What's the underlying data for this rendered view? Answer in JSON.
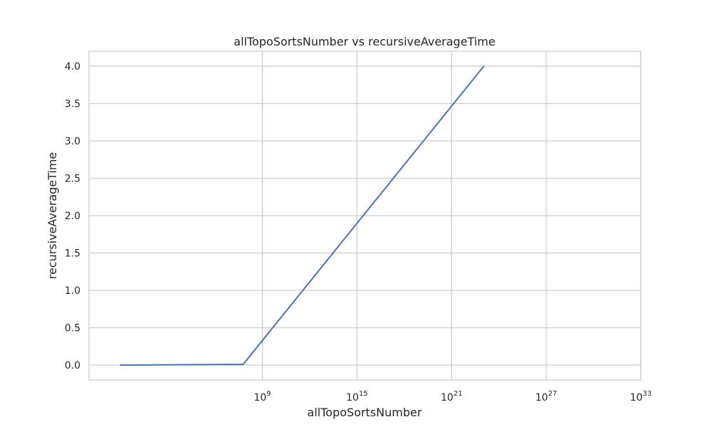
{
  "chart_data": {
    "type": "line",
    "title": "allTopoSortsNumber vs recursiveAverageTime",
    "xlabel": "allTopoSortsNumber",
    "ylabel": "recursiveAverageTime",
    "x_scale": "log",
    "xlim": [
      0.01,
      1e+33
    ],
    "ylim": [
      -0.2,
      4.2
    ],
    "grid": true,
    "x_ticks": [
      {
        "value": 1000000000.0,
        "base": "10",
        "exp": "9"
      },
      {
        "value": 1000000000000000.0,
        "base": "10",
        "exp": "15"
      },
      {
        "value": 1e+21,
        "base": "10",
        "exp": "21"
      },
      {
        "value": 1e+27,
        "base": "10",
        "exp": "27"
      },
      {
        "value": 1e+33,
        "base": "10",
        "exp": "33"
      }
    ],
    "y_ticks": [
      "0.0",
      "0.5",
      "1.0",
      "1.5",
      "2.0",
      "2.5",
      "3.0",
      "3.5",
      "4.0"
    ],
    "series": [
      {
        "color": "#4c72b0",
        "x": [
          1,
          60000000.0,
          1.1e+23
        ],
        "y": [
          0.0,
          0.01,
          4.0
        ]
      }
    ]
  }
}
